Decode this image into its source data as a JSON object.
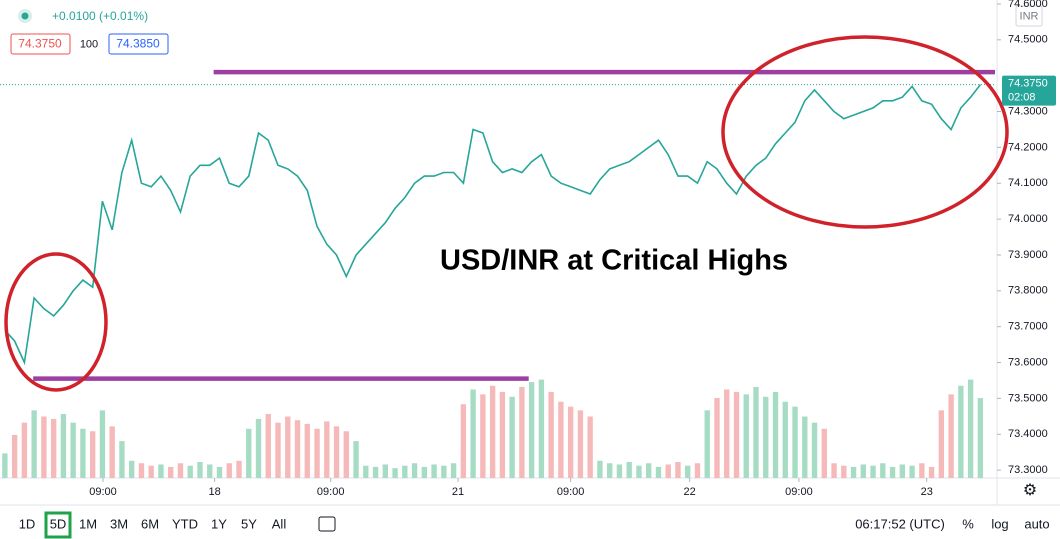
{
  "ui": {
    "change": "+0.0100 (+0.01%)",
    "bid": "74.3750",
    "spread": "100",
    "ask": "74.3850",
    "currency": "INR",
    "last_price": "74.3750",
    "countdown": "02:08",
    "ranges": [
      "1D",
      "5D",
      "1M",
      "3M",
      "6M",
      "YTD",
      "1Y",
      "5Y",
      "All"
    ],
    "clock": "06:17:52 (UTC)",
    "percent": "%",
    "log": "log",
    "auto": "auto"
  },
  "chart_data": {
    "type": "line",
    "annotation": "USD/INR at Critical Highs",
    "color": "#26a69a",
    "x": [
      0,
      1,
      2,
      3,
      4,
      5,
      6,
      7,
      8,
      9,
      10,
      11,
      12,
      13,
      14,
      15,
      16,
      17,
      18,
      19,
      20,
      21,
      22,
      23,
      24,
      25,
      26,
      27,
      28,
      29,
      30,
      31,
      32,
      33,
      34,
      35,
      36,
      37,
      38,
      39,
      40,
      41,
      42,
      43,
      44,
      45,
      46,
      47,
      48,
      49,
      50,
      51,
      52,
      53,
      54,
      55,
      56,
      57,
      58,
      59,
      60,
      61,
      62,
      63,
      64,
      65,
      66,
      67,
      68,
      69,
      70,
      71,
      72,
      73,
      74,
      75,
      76,
      77,
      78,
      79,
      80,
      81,
      82,
      83,
      84,
      85,
      86,
      87,
      88,
      89,
      90,
      91,
      92,
      93,
      94,
      95,
      96,
      97,
      98,
      99,
      100
    ],
    "values": [
      73.69,
      73.66,
      73.6,
      73.78,
      73.75,
      73.73,
      73.76,
      73.8,
      73.83,
      73.81,
      74.05,
      73.97,
      74.13,
      74.22,
      74.1,
      74.09,
      74.12,
      74.08,
      74.02,
      74.12,
      74.15,
      74.15,
      74.17,
      74.1,
      74.09,
      74.12,
      74.24,
      74.22,
      74.15,
      74.14,
      74.12,
      74.08,
      73.98,
      73.93,
      73.9,
      73.84,
      73.9,
      73.93,
      73.96,
      73.99,
      74.03,
      74.06,
      74.1,
      74.12,
      74.12,
      74.13,
      74.13,
      74.1,
      74.25,
      74.24,
      74.16,
      74.13,
      74.14,
      74.13,
      74.16,
      74.18,
      74.12,
      74.1,
      74.09,
      74.08,
      74.07,
      74.11,
      74.14,
      74.15,
      74.16,
      74.18,
      74.2,
      74.22,
      74.18,
      74.12,
      74.12,
      74.1,
      74.16,
      74.14,
      74.1,
      74.07,
      74.12,
      74.15,
      74.17,
      74.21,
      74.24,
      74.27,
      74.33,
      74.36,
      74.33,
      74.3,
      74.28,
      74.29,
      74.3,
      74.31,
      74.33,
      74.33,
      74.34,
      74.37,
      74.33,
      74.32,
      74.28,
      74.25,
      74.31,
      74.34,
      74.375
    ],
    "volume": [
      20,
      35,
      45,
      55,
      50,
      48,
      52,
      45,
      40,
      38,
      55,
      42,
      30,
      14,
      12,
      10,
      11,
      9,
      12,
      10,
      13,
      11,
      9,
      12,
      14,
      40,
      48,
      52,
      45,
      50,
      47,
      44,
      40,
      46,
      42,
      38,
      30,
      10,
      9,
      11,
      8,
      10,
      12,
      9,
      11,
      10,
      12,
      60,
      72,
      68,
      75,
      70,
      66,
      74,
      78,
      80,
      70,
      62,
      58,
      55,
      50,
      14,
      12,
      11,
      13,
      10,
      12,
      9,
      11,
      13,
      10,
      12,
      55,
      65,
      72,
      70,
      68,
      74,
      66,
      70,
      62,
      58,
      50,
      45,
      40,
      12,
      10,
      9,
      11,
      10,
      12,
      9,
      11,
      10,
      12,
      9,
      55,
      68,
      75,
      80,
      65
    ],
    "volume_colors": [
      "#a7dcc4",
      "#f6b9b9"
    ],
    "y2lim": [
      0,
      100
    ],
    "hlines": [
      {
        "value": 74.41,
        "x": [
          21.4,
          101.5
        ],
        "color": "#9c3fa0"
      },
      {
        "value": 73.555,
        "x": [
          2.9,
          53.7
        ],
        "color": "#9c3fa0"
      }
    ],
    "xlim": [
      -0.5,
      101.5
    ],
    "ylim": [
      73.278,
      74.611
    ],
    "xticks": [
      {
        "value": 10.06,
        "label": "09:00"
      },
      {
        "value": 21.5,
        "label": "18"
      },
      {
        "value": 33.4,
        "label": "09:00"
      },
      {
        "value": 46.45,
        "label": "21"
      },
      {
        "value": 58.0,
        "label": "09:00"
      },
      {
        "value": 70.2,
        "label": "22"
      },
      {
        "value": 81.4,
        "label": "09:00"
      },
      {
        "value": 94.5,
        "label": "23"
      }
    ],
    "yticks": [
      {
        "value": 74.6,
        "label": "74.6000"
      },
      {
        "value": 74.5,
        "label": "74.5000"
      },
      {
        "value": 74.3,
        "label": "74.3000"
      },
      {
        "value": 74.2,
        "label": "74.2000"
      },
      {
        "value": 74.1,
        "label": "74.1000"
      },
      {
        "value": 74.0,
        "label": "74.0000"
      },
      {
        "value": 73.9,
        "label": "73.9000"
      },
      {
        "value": 73.8,
        "label": "73.8000"
      },
      {
        "value": 73.7,
        "label": "73.7000"
      },
      {
        "value": 73.6,
        "label": "73.6000"
      },
      {
        "value": 73.5,
        "label": "73.5000"
      },
      {
        "value": 73.4,
        "label": "73.4000"
      },
      {
        "value": 73.3,
        "label": "73.3000"
      }
    ],
    "last_value": 74.375
  }
}
